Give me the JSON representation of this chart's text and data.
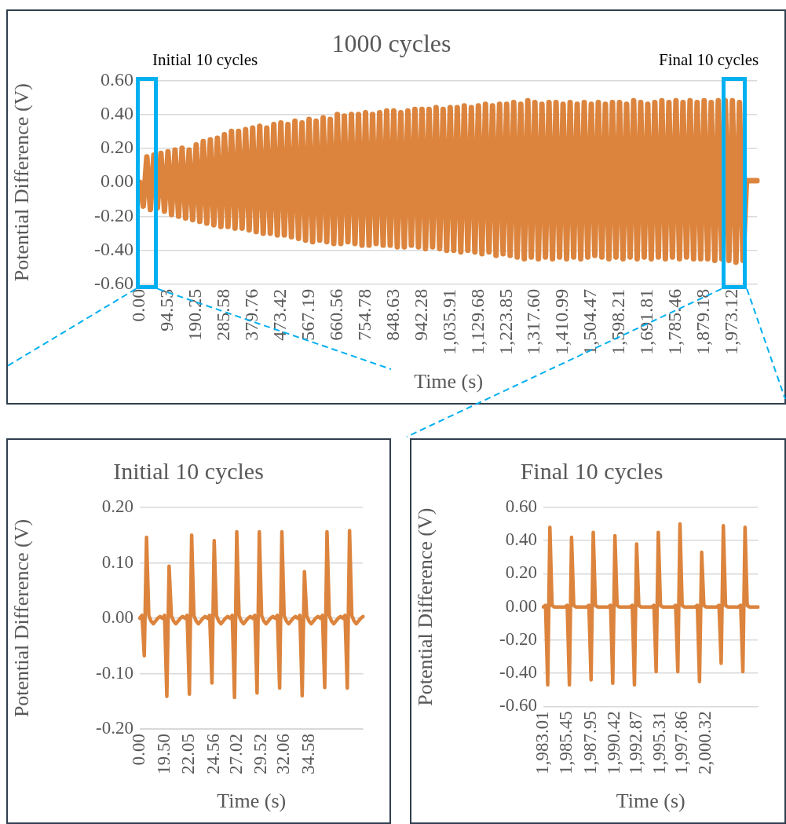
{
  "chart_data": [
    {
      "type": "line",
      "title": "1000 cycles",
      "xlabel": "Time (s)",
      "ylabel": "Potential Difference (V)",
      "annotations": [
        "Initial 10 cycles",
        "Final 10 cycles"
      ],
      "grid": "y",
      "categories": [
        "0.00",
        null,
        null,
        null,
        null,
        null,
        null,
        null,
        "94.53",
        null,
        null,
        null,
        null,
        null,
        null,
        null,
        "190.25",
        null,
        null,
        null,
        null,
        null,
        null,
        null,
        "285.58",
        null,
        null,
        null,
        null,
        null,
        null,
        null,
        "379.76",
        null,
        null,
        null,
        null,
        null,
        null,
        null,
        "473.42",
        null,
        null,
        null,
        null,
        null,
        null,
        null,
        "567.19",
        null,
        null,
        null,
        null,
        null,
        null,
        null,
        "660.56",
        null,
        null,
        null,
        null,
        null,
        null,
        null,
        "754.78",
        null,
        null,
        null,
        null,
        null,
        null,
        null,
        "848.63",
        null,
        null,
        null,
        null,
        null,
        null,
        null,
        "942.28",
        null,
        null,
        null,
        null,
        null,
        null,
        null,
        "1,035.91",
        null,
        null,
        null,
        null,
        null,
        null,
        null,
        "1,129.68",
        null,
        null,
        null,
        null,
        null,
        null,
        null,
        "1,223.85",
        null,
        null,
        null,
        null,
        null,
        null,
        null,
        "1,317.60",
        null,
        null,
        null,
        null,
        null,
        null,
        null,
        "1,410.99",
        null,
        null,
        null,
        null,
        null,
        null,
        null,
        "1,504.47",
        null,
        null,
        null,
        null,
        null,
        null,
        null,
        "1,598.21",
        null,
        null,
        null,
        null,
        null,
        null,
        null,
        "1,691.81",
        null,
        null,
        null,
        null,
        null,
        null,
        null,
        "1,785.46",
        null,
        null,
        null,
        null,
        null,
        null,
        null,
        "1,879.18",
        null,
        null,
        null,
        null,
        null,
        null,
        null,
        "1,973.12",
        null,
        null,
        null,
        null,
        null,
        null,
        null
      ],
      "series": [
        {
          "color": "#dc843d",
          "values": [
            0.0,
            -0.14,
            0.15,
            -0.16,
            0.16,
            -0.15,
            0.17,
            -0.17,
            0.18,
            -0.19,
            0.19,
            -0.2,
            0.2,
            -0.21,
            0.19,
            -0.22,
            0.22,
            -0.23,
            0.24,
            -0.24,
            0.25,
            -0.25,
            0.26,
            -0.26,
            0.28,
            -0.26,
            0.3,
            -0.27,
            0.3,
            -0.27,
            0.31,
            -0.28,
            0.32,
            -0.29,
            0.33,
            -0.3,
            0.32,
            -0.3,
            0.34,
            -0.31,
            0.35,
            -0.31,
            0.34,
            -0.32,
            0.36,
            -0.33,
            0.35,
            -0.34,
            0.37,
            -0.35,
            0.36,
            -0.34,
            0.38,
            -0.35,
            0.37,
            -0.36,
            0.4,
            -0.36,
            0.39,
            -0.35,
            0.4,
            -0.36,
            0.4,
            -0.37,
            0.41,
            -0.37,
            0.4,
            -0.36,
            0.41,
            -0.37,
            0.42,
            -0.37,
            0.42,
            -0.38,
            0.41,
            -0.38,
            0.42,
            -0.37,
            0.43,
            -0.38,
            0.43,
            -0.39,
            0.43,
            -0.38,
            0.44,
            -0.39,
            0.43,
            -0.4,
            0.44,
            -0.4,
            0.44,
            -0.41,
            0.45,
            -0.4,
            0.44,
            -0.41,
            0.45,
            -0.42,
            0.46,
            -0.41,
            0.45,
            -0.43,
            0.46,
            -0.42,
            0.46,
            -0.43,
            0.47,
            -0.44,
            0.46,
            -0.45,
            0.48,
            -0.44,
            0.47,
            -0.45,
            0.46,
            -0.44,
            0.47,
            -0.45,
            0.47,
            -0.44,
            0.46,
            -0.45,
            0.47,
            -0.44,
            0.46,
            -0.45,
            0.47,
            -0.44,
            0.46,
            -0.43,
            0.47,
            -0.44,
            0.46,
            -0.45,
            0.47,
            -0.44,
            0.47,
            -0.45,
            0.46,
            -0.44,
            0.48,
            -0.45,
            0.47,
            -0.44,
            0.46,
            -0.45,
            0.47,
            -0.44,
            0.48,
            -0.45,
            0.47,
            -0.44,
            0.48,
            -0.45,
            0.47,
            -0.44,
            0.48,
            -0.45,
            0.47,
            -0.45,
            0.48,
            -0.45,
            0.47,
            -0.46,
            0.48,
            -0.45,
            0.48,
            -0.46,
            0.48,
            -0.47,
            0.47,
            -0.46,
            0.01,
            0.01,
            0.01,
            0.01
          ]
        }
      ],
      "ylim": [
        -0.6,
        0.6
      ],
      "yticks": [
        {
          "value": -0.6,
          "label": "-0.60"
        },
        {
          "value": -0.4,
          "label": "-0.40"
        },
        {
          "value": -0.2,
          "label": "-0.20"
        },
        {
          "value": 0,
          "label": "0.00"
        },
        {
          "value": 0.2,
          "label": "0.20"
        },
        {
          "value": 0.4,
          "label": "0.40"
        },
        {
          "value": 0.6,
          "label": "0.60"
        }
      ]
    },
    {
      "type": "line",
      "title": "Initial 10 cycles",
      "xlabel": "Time (s)",
      "ylabel": "Potential Difference (V)",
      "grid": "y",
      "categories": [
        "0.00",
        null,
        null,
        null,
        null,
        null,
        null,
        null,
        null,
        null,
        null,
        "19.50",
        null,
        null,
        null,
        null,
        null,
        null,
        null,
        null,
        null,
        null,
        "22.05",
        null,
        null,
        null,
        null,
        null,
        null,
        null,
        null,
        null,
        null,
        "24.56",
        null,
        null,
        null,
        null,
        null,
        null,
        null,
        null,
        null,
        "27.02",
        null,
        null,
        null,
        null,
        null,
        null,
        null,
        null,
        null,
        null,
        "29.52",
        null,
        null,
        null,
        null,
        null,
        null,
        null,
        null,
        null,
        "32.06",
        null,
        null,
        null,
        null,
        null,
        null,
        null,
        null,
        null,
        null,
        "34.58",
        null,
        null,
        null,
        null,
        null,
        null,
        null,
        null,
        null,
        null,
        null,
        null,
        null,
        null,
        null,
        null,
        null,
        null,
        null,
        null,
        null,
        null,
        null,
        null
      ],
      "series": [
        {
          "color": "#dc843d",
          "values": [
            0,
            0.005,
            -0.068,
            0.146,
            0.005,
            -0.005,
            -0.01,
            -0.005,
            0,
            0.003,
            0,
            0.005,
            -0.141,
            0.094,
            0.005,
            -0.005,
            -0.01,
            -0.005,
            0,
            0.003,
            0,
            0.005,
            -0.137,
            0.15,
            0.005,
            -0.005,
            -0.01,
            -0.005,
            0,
            0.003,
            0,
            0.005,
            -0.117,
            0.14,
            0.005,
            -0.005,
            -0.01,
            -0.005,
            0,
            0.003,
            0,
            0.005,
            -0.143,
            0.156,
            0.005,
            -0.005,
            -0.01,
            -0.005,
            0,
            0.003,
            0,
            0.005,
            -0.135,
            0.156,
            0.005,
            -0.005,
            -0.01,
            -0.005,
            0,
            0.003,
            0,
            0.005,
            -0.126,
            0.156,
            0.005,
            -0.005,
            -0.01,
            -0.005,
            0,
            0.003,
            0,
            0.005,
            -0.14,
            0.084,
            0.005,
            -0.005,
            -0.01,
            -0.005,
            0,
            0.003,
            0,
            0.005,
            -0.125,
            0.156,
            0.005,
            -0.005,
            -0.01,
            -0.005,
            0,
            0.003,
            0,
            0.005,
            -0.126,
            0.158,
            0.005,
            -0.005,
            -0.01,
            -0.005,
            0,
            0.003
          ]
        }
      ],
      "ylim": [
        -0.2,
        0.2
      ],
      "yticks": [
        {
          "value": -0.2,
          "label": "-0.20"
        },
        {
          "value": -0.1,
          "label": "-0.10"
        },
        {
          "value": 0,
          "label": "0.00"
        },
        {
          "value": 0.1,
          "label": "0.10"
        },
        {
          "value": 0.2,
          "label": "0.20"
        }
      ]
    },
    {
      "type": "line",
      "title": "Final 10 cycles",
      "xlabel": "Time (s)",
      "ylabel": "Potential Difference (V)",
      "grid": "y",
      "categories": [
        "1,983.01",
        null,
        null,
        null,
        null,
        null,
        null,
        null,
        null,
        null,
        null,
        "1,985.45",
        null,
        null,
        null,
        null,
        null,
        null,
        null,
        null,
        null,
        null,
        "1,987.95",
        null,
        null,
        null,
        null,
        null,
        null,
        null,
        null,
        null,
        null,
        "1,990.42",
        null,
        null,
        null,
        null,
        null,
        null,
        null,
        null,
        null,
        "1,992.87",
        null,
        null,
        null,
        null,
        null,
        null,
        null,
        null,
        null,
        null,
        "1,995.31",
        null,
        null,
        null,
        null,
        null,
        null,
        null,
        null,
        null,
        "1,997.86",
        null,
        null,
        null,
        null,
        null,
        null,
        null,
        null,
        null,
        null,
        "2,000.32",
        null,
        null,
        null,
        null,
        null,
        null,
        null,
        null,
        null,
        null,
        null,
        null,
        null,
        null,
        null,
        null,
        null,
        null,
        null,
        null,
        null,
        null,
        null,
        null
      ],
      "series": [
        {
          "color": "#dc843d",
          "values": [
            0,
            0.01,
            -0.47,
            0.48,
            0.01,
            0,
            0,
            0,
            0,
            0,
            0,
            0.01,
            -0.47,
            0.42,
            0.01,
            0,
            0,
            0,
            0,
            0,
            0,
            0.01,
            -0.44,
            0.45,
            0.01,
            0,
            0,
            0,
            0,
            0,
            0,
            0.01,
            -0.46,
            0.43,
            0.01,
            0,
            0,
            0,
            0,
            0,
            0,
            0.01,
            -0.47,
            0.38,
            0.01,
            0,
            0,
            0,
            0,
            0,
            0,
            0.01,
            -0.39,
            0.45,
            0.01,
            0,
            0,
            0,
            0,
            0,
            0,
            0.01,
            -0.39,
            0.5,
            0.01,
            0,
            0,
            0,
            0,
            0,
            0,
            0.01,
            -0.45,
            0.33,
            0.01,
            0,
            0,
            0,
            0,
            0,
            0,
            0.01,
            -0.34,
            0.49,
            0.01,
            0,
            0,
            0,
            0,
            0,
            0,
            0.01,
            -0.39,
            0.48,
            0.01,
            0,
            0,
            0,
            0,
            0
          ]
        }
      ],
      "ylim": [
        -0.6,
        0.6
      ],
      "yticks": [
        {
          "value": -0.6,
          "label": "-0.60"
        },
        {
          "value": -0.4,
          "label": "-0.40"
        },
        {
          "value": -0.2,
          "label": "-0.20"
        },
        {
          "value": 0,
          "label": "0.00"
        },
        {
          "value": 0.2,
          "label": "0.20"
        },
        {
          "value": 0.4,
          "label": "0.40"
        },
        {
          "value": 0.6,
          "label": "0.60"
        }
      ]
    }
  ]
}
